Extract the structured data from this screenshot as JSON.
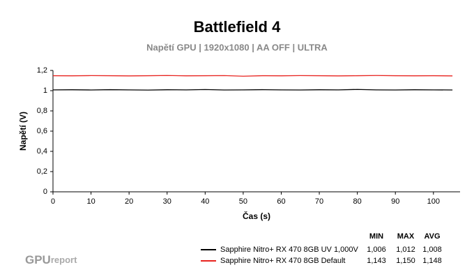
{
  "chart_data": {
    "type": "line",
    "title": "Battlefield 4",
    "subtitle": "Napětí GPU | 1920x1080 | AA OFF | ULTRA",
    "x_label": "Čas (s)",
    "y_label": "Napětí (V)",
    "x": [
      0,
      5,
      10,
      15,
      20,
      25,
      30,
      35,
      40,
      45,
      50,
      55,
      60,
      65,
      70,
      75,
      80,
      85,
      90,
      95,
      100,
      105
    ],
    "series": [
      {
        "name": "Sapphire Nitro+ RX 470 8GB UV 1,000V",
        "color": "#000000",
        "values": [
          1.008,
          1.009,
          1.007,
          1.01,
          1.008,
          1.006,
          1.009,
          1.008,
          1.011,
          1.007,
          1.008,
          1.01,
          1.008,
          1.007,
          1.009,
          1.008,
          1.012,
          1.008,
          1.007,
          1.009,
          1.008,
          1.007
        ],
        "stats": {
          "values": [
            1.006,
            1.012,
            1.008
          ],
          "value_labels": [
            "1,006",
            "1,012",
            "1,008"
          ]
        }
      },
      {
        "name": "Sapphire Nitro+ RX 470 8GB Default",
        "color": "#e8231f",
        "values": [
          1.148,
          1.147,
          1.149,
          1.148,
          1.146,
          1.148,
          1.15,
          1.147,
          1.148,
          1.149,
          1.143,
          1.148,
          1.147,
          1.149,
          1.148,
          1.146,
          1.148,
          1.15,
          1.148,
          1.147,
          1.148,
          1.146
        ],
        "stats": {
          "values": [
            1.143,
            1.15,
            1.148
          ],
          "value_labels": [
            "1,143",
            "1,150",
            "1,148"
          ]
        }
      }
    ],
    "stats_headers": [
      "MIN",
      "MAX",
      "AVG"
    ],
    "xlim": [
      0,
      107
    ],
    "xticks": [
      0,
      10,
      20,
      30,
      40,
      50,
      60,
      70,
      80,
      90,
      100
    ],
    "ylim": [
      0,
      1.2
    ],
    "yticks": [
      0,
      {
        "value": 0.2,
        "label": "0,2"
      },
      {
        "value": 0.4,
        "label": "0,4"
      },
      {
        "value": 0.6,
        "label": "0,6"
      },
      {
        "value": 0.8,
        "label": "0,8"
      },
      1,
      {
        "value": 1.2,
        "label": "1,2"
      }
    ],
    "grid": false
  },
  "logo": {
    "main": "GPU",
    "sub": "report"
  }
}
